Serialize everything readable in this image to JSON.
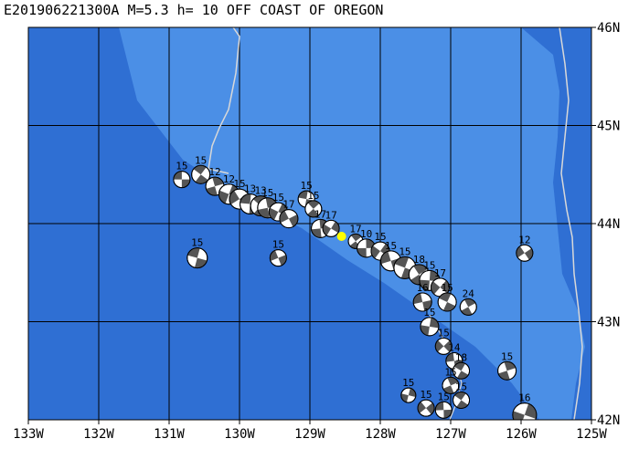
{
  "title": "E201906221300A M=5.3 h= 10 OFF COAST OF OREGON",
  "map": {
    "lon_range": [
      -133,
      -125
    ],
    "lat_range": [
      42,
      46
    ],
    "x_ticks": [
      {
        "lon": -133,
        "label": "133W"
      },
      {
        "lon": -132,
        "label": "132W"
      },
      {
        "lon": -131,
        "label": "131W"
      },
      {
        "lon": -130,
        "label": "130W"
      },
      {
        "lon": -129,
        "label": "129W"
      },
      {
        "lon": -128,
        "label": "128W"
      },
      {
        "lon": -127,
        "label": "127W"
      },
      {
        "lon": -126,
        "label": "126W"
      },
      {
        "lon": -125,
        "label": "125W"
      }
    ],
    "y_ticks": [
      {
        "lat": 46,
        "label": "46N"
      },
      {
        "lat": 45,
        "label": "45N"
      },
      {
        "lat": 44,
        "label": "44N"
      },
      {
        "lat": 43,
        "label": "43N"
      },
      {
        "lat": 42,
        "label": "42N"
      }
    ],
    "colors": {
      "ocean_deep": "#2f6fd3",
      "ocean_shelf": "#4b8fe6",
      "grid": "#000000",
      "boundary": "#d8d8d8",
      "event_marker": "#ffff00"
    },
    "event": {
      "lon": -128.55,
      "lat": 43.87
    },
    "mechanisms": [
      {
        "lon": -130.82,
        "lat": 44.45,
        "label": "15",
        "size": 9
      },
      {
        "lon": -130.55,
        "lat": 44.5,
        "label": "15",
        "size": 10
      },
      {
        "lon": -130.35,
        "lat": 44.38,
        "label": "12",
        "size": 10
      },
      {
        "lon": -130.15,
        "lat": 44.3,
        "label": "12",
        "size": 11
      },
      {
        "lon": -130.0,
        "lat": 44.25,
        "label": "15",
        "size": 11
      },
      {
        "lon": -129.85,
        "lat": 44.2,
        "label": "13",
        "size": 11
      },
      {
        "lon": -129.7,
        "lat": 44.18,
        "label": "13",
        "size": 11
      },
      {
        "lon": -129.6,
        "lat": 44.16,
        "label": "15",
        "size": 11
      },
      {
        "lon": -129.45,
        "lat": 44.12,
        "label": "15",
        "size": 10
      },
      {
        "lon": -129.3,
        "lat": 44.05,
        "label": "17",
        "size": 10
      },
      {
        "lon": -129.05,
        "lat": 44.25,
        "label": "15",
        "size": 9
      },
      {
        "lon": -128.95,
        "lat": 44.15,
        "label": "15",
        "size": 9
      },
      {
        "lon": -128.85,
        "lat": 43.95,
        "label": "17",
        "size": 10
      },
      {
        "lon": -128.7,
        "lat": 43.95,
        "label": "17",
        "size": 9
      },
      {
        "lon": -129.45,
        "lat": 43.65,
        "label": "15",
        "size": 9
      },
      {
        "lon": -130.6,
        "lat": 43.65,
        "label": "15",
        "size": 11
      },
      {
        "lon": -128.35,
        "lat": 43.82,
        "label": "17",
        "size": 8
      },
      {
        "lon": -128.2,
        "lat": 43.75,
        "label": "10",
        "size": 10
      },
      {
        "lon": -128.0,
        "lat": 43.72,
        "label": "15",
        "size": 10
      },
      {
        "lon": -127.85,
        "lat": 43.62,
        "label": "15",
        "size": 11
      },
      {
        "lon": -127.65,
        "lat": 43.55,
        "label": "15",
        "size": 12
      },
      {
        "lon": -127.45,
        "lat": 43.48,
        "label": "18",
        "size": 11
      },
      {
        "lon": -127.3,
        "lat": 43.42,
        "label": "15",
        "size": 11
      },
      {
        "lon": -127.15,
        "lat": 43.35,
        "label": "17",
        "size": 10
      },
      {
        "lon": -127.4,
        "lat": 43.2,
        "label": "16",
        "size": 10
      },
      {
        "lon": -127.05,
        "lat": 43.2,
        "label": "15",
        "size": 10
      },
      {
        "lon": -126.75,
        "lat": 43.15,
        "label": "24",
        "size": 9
      },
      {
        "lon": -127.3,
        "lat": 42.95,
        "label": "15",
        "size": 10
      },
      {
        "lon": -127.1,
        "lat": 42.75,
        "label": "15",
        "size": 9
      },
      {
        "lon": -126.95,
        "lat": 42.6,
        "label": "14",
        "size": 9
      },
      {
        "lon": -126.85,
        "lat": 42.5,
        "label": "18",
        "size": 9
      },
      {
        "lon": -127.0,
        "lat": 42.35,
        "label": "15",
        "size": 9
      },
      {
        "lon": -127.6,
        "lat": 42.25,
        "label": "15",
        "size": 8
      },
      {
        "lon": -127.35,
        "lat": 42.12,
        "label": "15",
        "size": 9
      },
      {
        "lon": -127.1,
        "lat": 42.1,
        "label": "15",
        "size": 9
      },
      {
        "lon": -126.85,
        "lat": 42.2,
        "label": "15",
        "size": 9
      },
      {
        "lon": -126.2,
        "lat": 42.5,
        "label": "15",
        "size": 10
      },
      {
        "lon": -125.95,
        "lat": 42.05,
        "label": "16",
        "size": 13
      },
      {
        "lon": -125.95,
        "lat": 43.7,
        "label": "12",
        "size": 9
      }
    ]
  }
}
